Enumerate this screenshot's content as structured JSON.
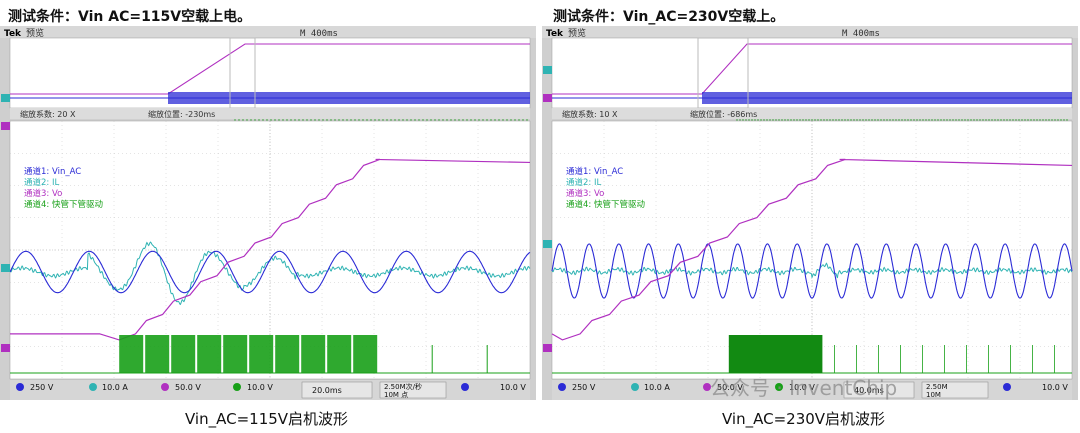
{
  "panels": [
    {
      "heading": "测试条件：Vin AC=115V空载上电。",
      "caption": "Vin_AC=115V启机波形",
      "overview": {
        "brand": "Tek",
        "mode": "预览",
        "timebase": "M 400ms"
      },
      "zoom": {
        "factor_label": "缩放系数: 20 X",
        "position_label": "缩放位置: -230ms"
      },
      "legend": [
        "通道1: Vin_AC",
        "通道2: IL",
        "通道3: Vo",
        "通道4: 快管下管驱动"
      ],
      "status": {
        "ch1": "250 V",
        "ch2": "10.0 A",
        "ch3": "50.0 V",
        "ch4": "10.0 V",
        "time": "20.0ms",
        "rate": "2.50M次/秒",
        "points": "10M 点",
        "trigger": "10.0 V"
      }
    },
    {
      "heading": "测试条件：Vin_AC=230V空载上。",
      "caption": "Vin_AC=230V启机波形",
      "overview": {
        "brand": "Tek",
        "mode": "预览",
        "timebase": "M 400ms"
      },
      "zoom": {
        "factor_label": "缩放系数: 10 X",
        "position_label": "缩放位置: -686ms"
      },
      "legend": [
        "通道1: Vin_AC",
        "通道2: IL",
        "通道3: Vo",
        "通道4: 快管下管驱动"
      ],
      "status": {
        "ch1": "250 V",
        "ch2": "10.0 A",
        "ch3": "50.0 V",
        "ch4": "10.0 V",
        "time": "40.0ms",
        "rate": "2.50M",
        "points": "10M",
        "trigger": "10.0 V"
      }
    }
  ],
  "watermark": "公众号 · InventChip",
  "chart_data": [
    {
      "type": "line",
      "title": "Vin_AC=115V启机波形",
      "x_div": 10,
      "y_div": 8,
      "series": [
        {
          "name": "通道1: Vin_AC",
          "color": "#2b2bd6",
          "cycles": 8.2,
          "amplitude_div": 0.6,
          "offset_div": 0
        },
        {
          "name": "通道2: IL",
          "color": "#2fb3b3",
          "amplitude_div": 1.0
        },
        {
          "name": "通道3: Vo",
          "color": "#b030c0",
          "start_div": -0.65,
          "end_div": 3.05
        },
        {
          "name": "通道4: 快管下管驱动",
          "color": "#18a018",
          "burst_start_div": 2.1,
          "burst_end_div": 7.1,
          "high_div": 0.8
        }
      ],
      "colors": {
        "ch1": "#2b2bd6",
        "ch2": "#2fb3b3",
        "ch3": "#b030c0",
        "ch4": "#18a018"
      }
    },
    {
      "type": "line",
      "title": "Vin_AC=230V启机波形",
      "x_div": 10,
      "y_div": 8,
      "series": [
        {
          "name": "通道1: Vin_AC",
          "color": "#2b2bd6",
          "cycles": 17.5,
          "amplitude_div": 0.9,
          "offset_div": 0
        },
        {
          "name": "通道2: IL",
          "color": "#2fb3b3",
          "amplitude_div": 0.9
        },
        {
          "name": "通道3: Vo",
          "color": "#b030c0",
          "start_div": 0.2,
          "end_div": 3.0
        },
        {
          "name": "通道4: 快管下管驱动",
          "color": "#18a018",
          "burst_start_div": 3.4,
          "burst_end_div": 5.2,
          "high_div": 0.8
        }
      ],
      "colors": {
        "ch1": "#2b2bd6",
        "ch2": "#2fb3b3",
        "ch3": "#b030c0",
        "ch4": "#18a018"
      }
    }
  ]
}
